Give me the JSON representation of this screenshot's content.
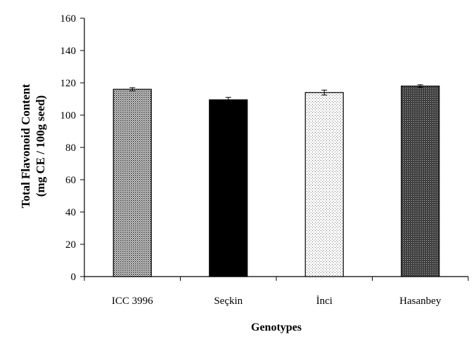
{
  "chart_data": {
    "type": "bar",
    "categories": [
      "ICC 3996",
      "Seçkin",
      "İnci",
      "Hasanbey"
    ],
    "values": [
      116,
      109.5,
      114,
      118
    ],
    "errors": [
      1,
      1.5,
      1.5,
      0.8
    ],
    "title": "",
    "xlabel": "Genotypes",
    "ylabel_line1": "Total Flavonoid Content",
    "ylabel_line2": "(mg CE / 100g seed)",
    "ylim": [
      0,
      160
    ],
    "yticks": [
      "0",
      "20",
      "40",
      "60",
      "80",
      "100",
      "120",
      "140",
      "160"
    ],
    "grid": false,
    "bar_patterns": [
      "dense-dots",
      "solid-black",
      "light-dots",
      "dark-dots"
    ],
    "colors": {
      "axis": "#000000",
      "bar_outline": "#000000",
      "background": "#ffffff"
    }
  }
}
